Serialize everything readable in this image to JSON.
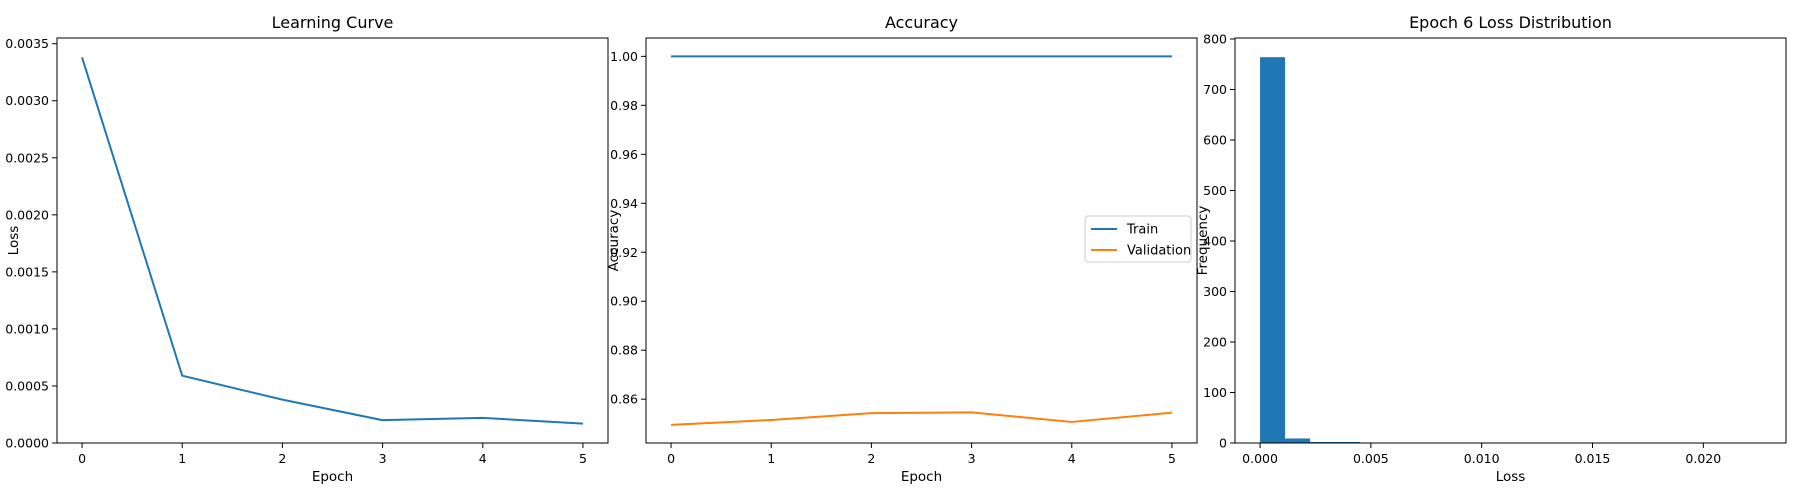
{
  "chart_data": [
    {
      "type": "line",
      "title": "Learning Curve",
      "xlabel": "Epoch",
      "ylabel": "Loss",
      "x": [
        0,
        1,
        2,
        3,
        4,
        5
      ],
      "series": [
        {
          "values": [
            0.00338,
            0.00059,
            0.00038,
            0.0002,
            0.00022,
            0.00017
          ],
          "color": "#1f77b4"
        }
      ],
      "xlim": [
        -0.25,
        5.25
      ],
      "ylim": [
        0,
        0.00355
      ],
      "xticks": [
        0,
        1,
        2,
        3,
        4,
        5
      ],
      "xtick_labels": [
        "0",
        "1",
        "2",
        "3",
        "4",
        "5"
      ],
      "yticks": [
        0,
        0.0005,
        0.001,
        0.0015,
        0.002,
        0.0025,
        0.003,
        0.0035
      ],
      "ytick_labels": [
        "0.0000",
        "0.0005",
        "0.0010",
        "0.0015",
        "0.0020",
        "0.0025",
        "0.0030",
        "0.0035"
      ],
      "grid": false,
      "legend": null
    },
    {
      "type": "line",
      "title": "Accuracy",
      "xlabel": "Epoch",
      "ylabel": "Accuracy",
      "x": [
        0,
        1,
        2,
        3,
        4,
        5
      ],
      "series": [
        {
          "name": "Train",
          "values": [
            1.0,
            1.0,
            1.0,
            1.0,
            1.0,
            1.0
          ],
          "color": "#1f77b4"
        },
        {
          "name": "Validation",
          "values": [
            0.8495,
            0.8515,
            0.8543,
            0.8546,
            0.8507,
            0.8545
          ],
          "color": "#ff7f0e"
        }
      ],
      "xlim": [
        -0.25,
        5.25
      ],
      "ylim": [
        0.8421,
        1.0075
      ],
      "xticks": [
        0,
        1,
        2,
        3,
        4,
        5
      ],
      "xtick_labels": [
        "0",
        "1",
        "2",
        "3",
        "4",
        "5"
      ],
      "yticks": [
        0.86,
        0.88,
        0.9,
        0.92,
        0.94,
        0.96,
        0.98,
        1.0
      ],
      "ytick_labels": [
        "0.86",
        "0.88",
        "0.90",
        "0.92",
        "0.94",
        "0.96",
        "0.98",
        "1.00"
      ],
      "grid": false,
      "legend": "center-right"
    },
    {
      "type": "bar",
      "title": "Epoch 6 Loss Distribution",
      "xlabel": "Loss",
      "ylabel": "Frequency",
      "bins": [
        0.0,
        0.00113,
        0.00226,
        0.00339,
        0.00452,
        0.00565,
        0.00678,
        0.00791,
        0.00904,
        0.01017,
        0.0113,
        0.01243,
        0.01356,
        0.01469,
        0.01582,
        0.01695,
        0.01808,
        0.01921,
        0.02034,
        0.02147,
        0.0226
      ],
      "counts": [
        764,
        9,
        2,
        2,
        0,
        0,
        1,
        1,
        0,
        1,
        0,
        0,
        0,
        0,
        0,
        1,
        0,
        0,
        0,
        1
      ],
      "color": "#1f77b4",
      "xlim": [
        -0.00113,
        0.02373
      ],
      "ylim": [
        0,
        802
      ],
      "xticks": [
        0.0,
        0.005,
        0.01,
        0.015,
        0.02
      ],
      "xtick_labels": [
        "0.000",
        "0.005",
        "0.010",
        "0.015",
        "0.020"
      ],
      "yticks": [
        0,
        100,
        200,
        300,
        400,
        500,
        600,
        700,
        800
      ],
      "ytick_labels": [
        "0",
        "100",
        "200",
        "300",
        "400",
        "500",
        "600",
        "700",
        "800"
      ],
      "grid": false,
      "legend": null
    }
  ]
}
